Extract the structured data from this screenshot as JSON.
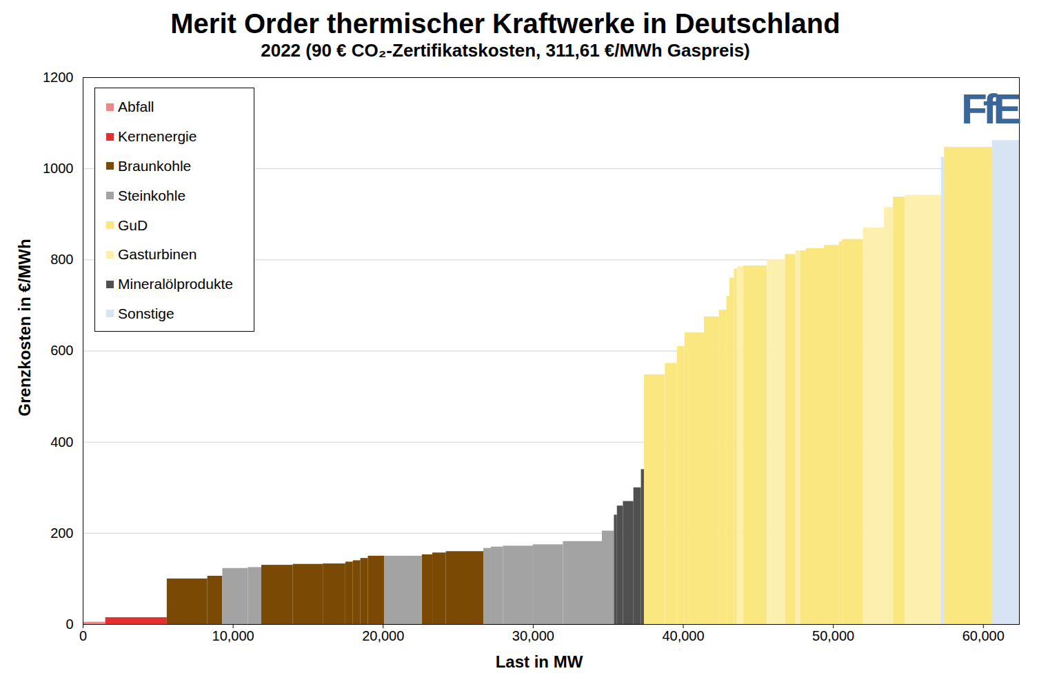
{
  "chart_data": {
    "type": "bar",
    "title": "Merit Order thermischer Kraftwerke in Deutschland",
    "subtitle": "2022 (90 € CO₂-Zertifikatskosten, 311,61 €/MWh Gaspreis)",
    "logo": "FfE",
    "x_label": "Last in MW",
    "y_label": "Grenzkosten in €/MWh",
    "xlim": [
      0,
      62400
    ],
    "xticks": [
      0,
      {
        "value": 10000,
        "label": "10,000"
      },
      {
        "value": 20000,
        "label": "20,000"
      },
      {
        "value": 30000,
        "label": "30,000"
      },
      {
        "value": 40000,
        "label": "40,000"
      },
      {
        "value": 50000,
        "label": "50,000"
      },
      {
        "value": 60000,
        "label": "60,000"
      }
    ],
    "ylim": [
      0,
      1200
    ],
    "yticks": [
      0,
      200,
      400,
      600,
      800,
      1000,
      1200
    ],
    "grid": true,
    "legend": "top-left",
    "series": [
      {
        "name": "Abfall",
        "color": "#e8898a",
        "x_start": [
          0
        ],
        "x_end": [
          1500
        ],
        "values": [
          5
        ]
      },
      {
        "name": "Kernenergie",
        "color": "#e03030",
        "x_start": [
          1500
        ],
        "x_end": [
          5600
        ],
        "values": [
          15
        ]
      },
      {
        "name": "Braunkohle",
        "color": "#7a4a04",
        "x_start": [
          5600,
          8300,
          11900,
          14000,
          16000,
          17500,
          18000,
          18500,
          19000,
          22600,
          23300,
          24200
        ],
        "x_end": [
          8300,
          9300,
          14000,
          16000,
          17500,
          18000,
          18500,
          19000,
          20100,
          23300,
          24200,
          26700
        ],
        "values": [
          100,
          106,
          130,
          132,
          133,
          137,
          140,
          145,
          150,
          153,
          157,
          160
        ]
      },
      {
        "name": "Steinkohle",
        "color": "#a3a3a3",
        "x_start": [
          9300,
          11000,
          20100,
          26700,
          27200,
          28000,
          30000,
          32000,
          34600
        ],
        "x_end": [
          11000,
          11900,
          22600,
          27200,
          28000,
          30000,
          32000,
          34600,
          35400
        ],
        "values": [
          123,
          125,
          150,
          167,
          170,
          172,
          175,
          182,
          205
        ]
      },
      {
        "name": "GuD",
        "color": "#fbe77f",
        "x_start": [
          37400,
          38800,
          39600,
          40100,
          41400,
          42400,
          42900,
          43100,
          43400,
          44000,
          46800,
          47800,
          48200,
          49400,
          50400,
          50600,
          54000,
          57400
        ],
        "x_end": [
          38800,
          39600,
          40100,
          41400,
          42400,
          42900,
          43100,
          43400,
          43600,
          45600,
          47500,
          48200,
          49400,
          50400,
          50600,
          52000,
          54800,
          60600
        ],
        "values": [
          548,
          573,
          610,
          640,
          675,
          690,
          720,
          760,
          780,
          787,
          812,
          820,
          825,
          832,
          840,
          845,
          938,
          1047
        ]
      },
      {
        "name": "Gasturbinen",
        "color": "#fdf0ae",
        "x_start": [
          43600,
          45600,
          47500,
          52000,
          53400,
          54800
        ],
        "x_end": [
          44000,
          46800,
          47800,
          53400,
          54000,
          57200
        ],
        "values": [
          785,
          800,
          820,
          870,
          915,
          942
        ]
      },
      {
        "name": "Mineralölprodukte",
        "color": "#505050",
        "x_start": [
          35400,
          35600,
          36000,
          36700,
          37200
        ],
        "x_end": [
          35600,
          36000,
          36700,
          37200,
          37400
        ],
        "values": [
          240,
          260,
          270,
          300,
          340
        ]
      },
      {
        "name": "Sonstige",
        "color": "#d6e4f3",
        "x_start": [
          57200,
          60600
        ],
        "x_end": [
          57400,
          62400
        ],
        "values": [
          1025,
          1062
        ]
      }
    ]
  }
}
